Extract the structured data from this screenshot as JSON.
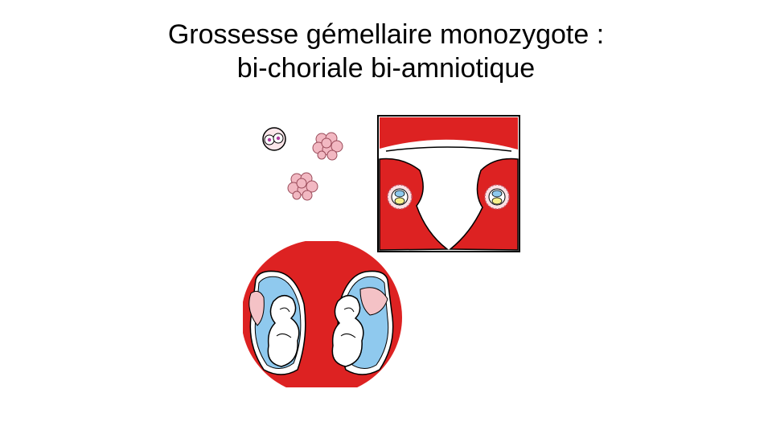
{
  "slide": {
    "title_line1": "Grossesse gémellaire monozygote :",
    "title_line2": "bi-choriale bi-amniotique"
  },
  "colors": {
    "uterus_red": "#dd2222",
    "outline": "#000000",
    "amnion_blue": "#8fc9ee",
    "placenta_pink": "#f4c2c6",
    "morula_pink": "#f2b8c2",
    "embryo_yellow": "#f8f08a",
    "nucleus_purple": "#b03aa0"
  },
  "icons": {
    "zygote": "two-cell-zygote-icon",
    "morula": "morula-icon",
    "uterus": "uterus-cross-section-icon",
    "twins": "twin-fetuses-icon"
  }
}
